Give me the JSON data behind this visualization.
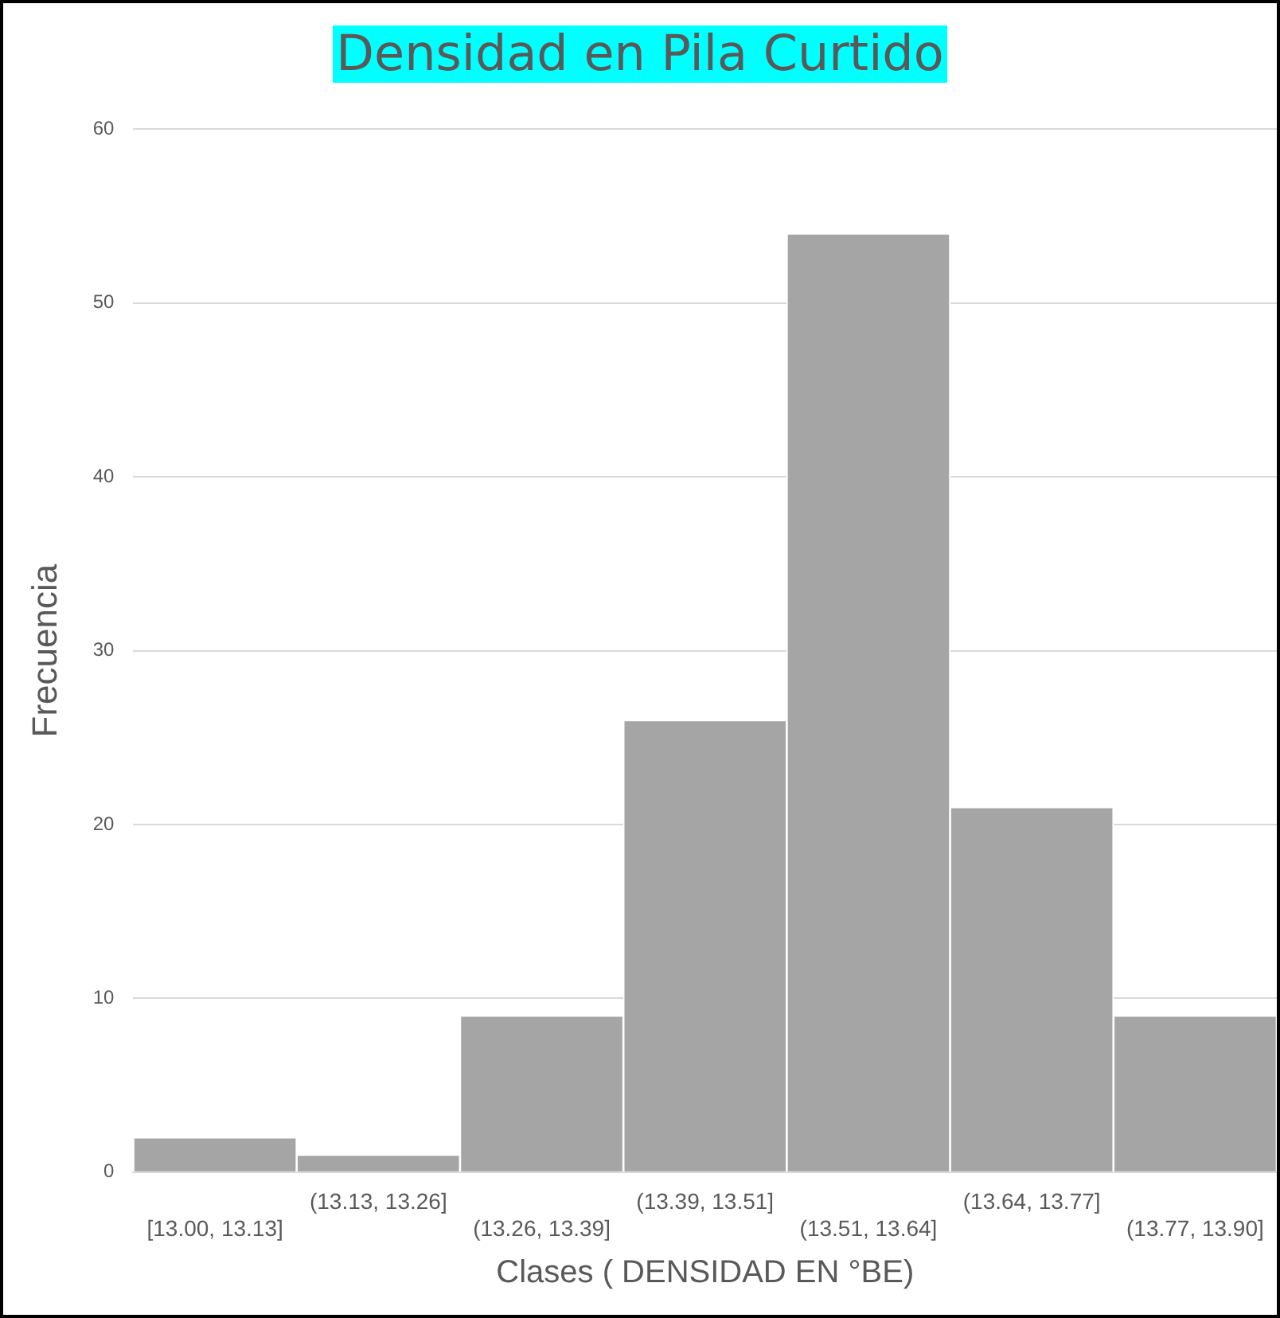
{
  "chart_data": {
    "type": "bar",
    "title": "Densidad en Pila Curtido",
    "xlabel": "Clases ( DENSIDAD EN °BE)",
    "ylabel": "Frecuencia",
    "categories": [
      "[13.00, 13.13]",
      "(13.13, 13.26]",
      "(13.26, 13.39]",
      "(13.39, 13.51]",
      "(13.51, 13.64]",
      "(13.64, 13.77]",
      "(13.77, 13.90]"
    ],
    "values": [
      2,
      1,
      9,
      26,
      54,
      21,
      9
    ],
    "color": "#a5a5a5",
    "ylim": [
      0,
      60
    ],
    "yticks": [
      0,
      10,
      20,
      30,
      40,
      50,
      60
    ],
    "grid": "y",
    "legend": false
  }
}
